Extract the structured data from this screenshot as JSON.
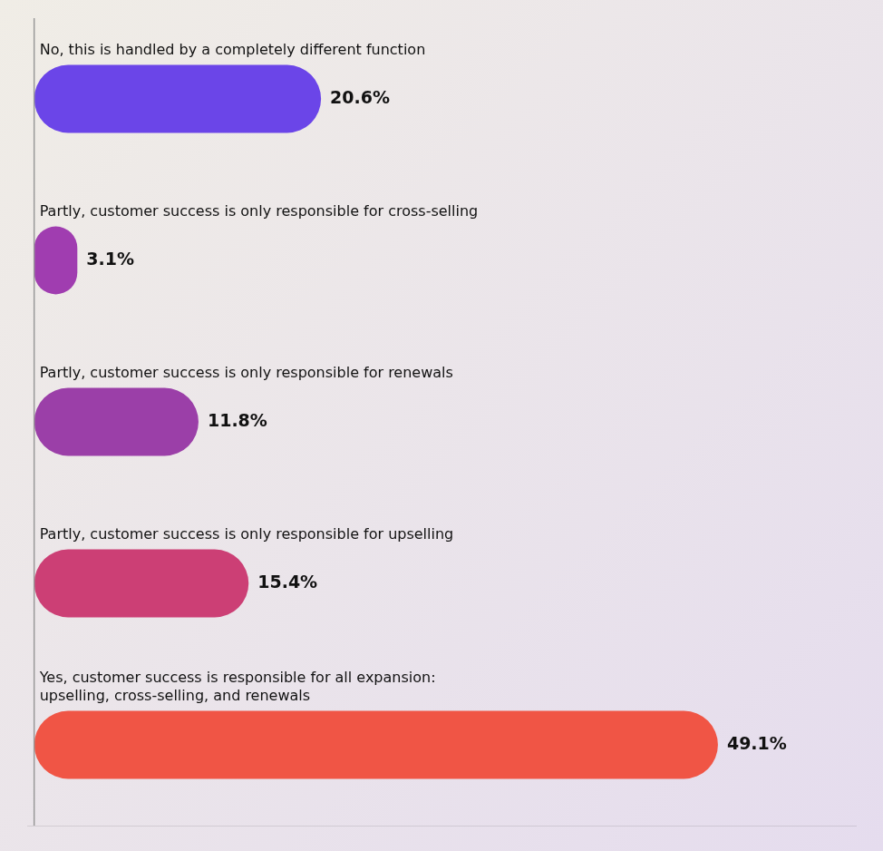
{
  "chart_data": {
    "type": "bar",
    "orientation": "horizontal",
    "categories": [
      "No, this is handled by a completely different function",
      "Partly, customer success is only responsible for cross-selling",
      "Partly, customer success is only responsible for renewals",
      "Partly, customer success is only responsible for upselling",
      "Yes, customer success is responsible for all expansion:\nupselling, cross-selling, and renewals"
    ],
    "values": [
      20.6,
      3.1,
      11.8,
      15.4,
      49.1
    ],
    "value_labels": [
      "20.6%",
      "3.1%",
      "11.8%",
      "15.4%",
      "49.1%"
    ],
    "colors": [
      "#6B45E8",
      "#A03DB0",
      "#9B3FA8",
      "#CC3F75",
      "#F05545"
    ],
    "xlim": [
      -0.5,
      59
    ],
    "grid": false,
    "data_labels": true,
    "tick_labels": false
  }
}
